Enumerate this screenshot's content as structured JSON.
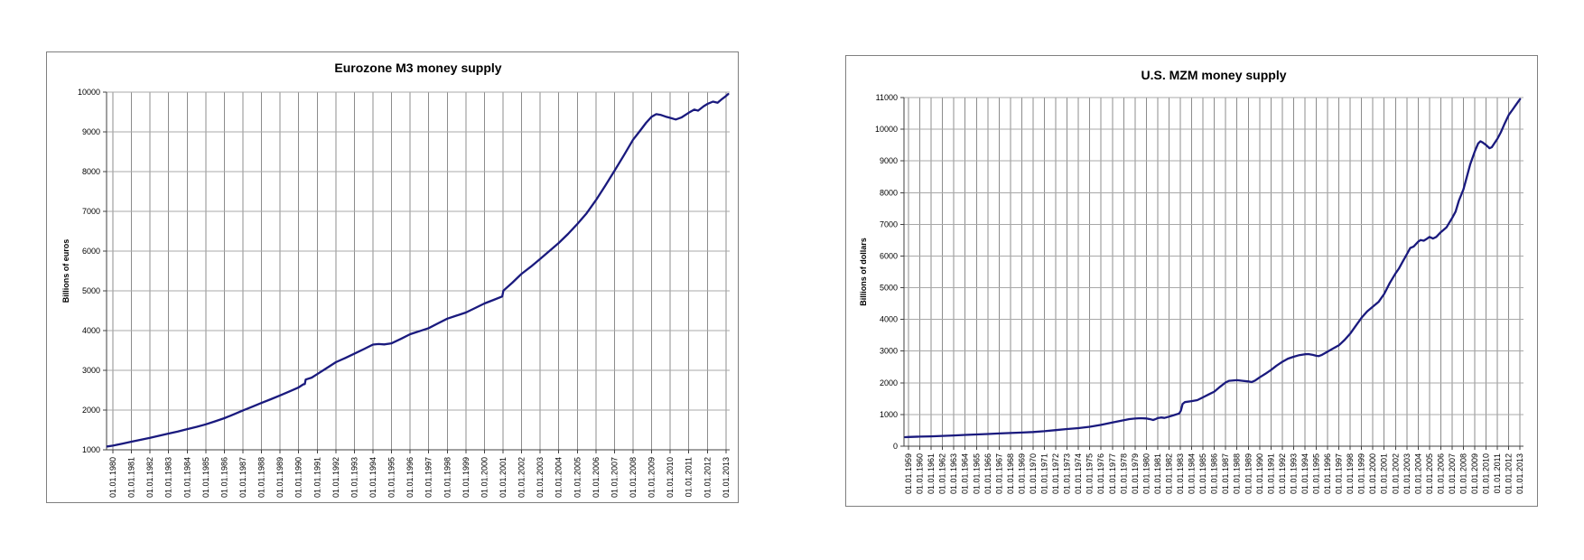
{
  "page": {
    "background_color": "#ffffff"
  },
  "chart_data": [
    {
      "type": "line",
      "title": "Eurozone M3 money supply",
      "ylabel": "Billions of euros",
      "xlabel": "",
      "legend": "none",
      "grid": "on",
      "line_color": "#1a1a7e",
      "ylim": [
        1000,
        10000
      ],
      "xlim": [
        1979.66,
        2013.2
      ],
      "y_ticks": [
        1000,
        2000,
        3000,
        4000,
        5000,
        6000,
        7000,
        8000,
        9000,
        10000
      ],
      "x_tick_year_start": 1980,
      "x_tick_labels": [
        "01.01.1980",
        "01.01.1981",
        "01.01.1982",
        "01.01.1983",
        "01.01.1984",
        "01.01.1985",
        "01.01.1986",
        "01.01.1987",
        "01.01.1988",
        "01.01.1989",
        "01.01.1990",
        "01.01.1991",
        "01.01.1992",
        "01.01.1993",
        "01.01.1994",
        "01.01.1995",
        "01.01.1996",
        "01.01.1997",
        "01.01.1998",
        "01.01.1999",
        "01.01.2000",
        "01.01.2001",
        "01.01.2002",
        "01.01.2003",
        "01.01.2004",
        "01.01.2005",
        "01.01.2006",
        "01.01.2007",
        "01.01.2008",
        "01.01.2009",
        "01.01.2010",
        "01.01.2011",
        "01.01.2012",
        "01.01.2013"
      ],
      "series": [
        {
          "name": "Eurozone M3",
          "points": [
            [
              1979.7,
              1085
            ],
            [
              1980,
              1105
            ],
            [
              1980.5,
              1155
            ],
            [
              1981,
              1205
            ],
            [
              1981.5,
              1252
            ],
            [
              1982,
              1300
            ],
            [
              1982.5,
              1355
            ],
            [
              1983,
              1410
            ],
            [
              1983.5,
              1462
            ],
            [
              1984,
              1520
            ],
            [
              1984.5,
              1578
            ],
            [
              1985,
              1642
            ],
            [
              1985.5,
              1716
            ],
            [
              1986,
              1795
            ],
            [
              1986.5,
              1892
            ],
            [
              1987,
              1990
            ],
            [
              1987.5,
              2085
            ],
            [
              1988,
              2180
            ],
            [
              1988.5,
              2272
            ],
            [
              1989,
              2368
            ],
            [
              1989.5,
              2468
            ],
            [
              1990,
              2570
            ],
            [
              1990.25,
              2648
            ],
            [
              1990.33,
              2655
            ],
            [
              1990.38,
              2768
            ],
            [
              1990.7,
              2815
            ],
            [
              1991,
              2905
            ],
            [
              1991.5,
              3055
            ],
            [
              1992,
              3205
            ],
            [
              1992.5,
              3310
            ],
            [
              1993,
              3418
            ],
            [
              1993.5,
              3532
            ],
            [
              1994,
              3648
            ],
            [
              1994.3,
              3662
            ],
            [
              1994.6,
              3652
            ],
            [
              1995,
              3680
            ],
            [
              1995.5,
              3792
            ],
            [
              1996,
              3908
            ],
            [
              1996.5,
              3985
            ],
            [
              1997,
              4062
            ],
            [
              1997.5,
              4182
            ],
            [
              1998,
              4300
            ],
            [
              1998.5,
              4378
            ],
            [
              1999,
              4455
            ],
            [
              1999.5,
              4568
            ],
            [
              2000,
              4682
            ],
            [
              2000.5,
              4772
            ],
            [
              2000.96,
              4858
            ],
            [
              2001.02,
              5005
            ],
            [
              2001.5,
              5205
            ],
            [
              2002,
              5430
            ],
            [
              2002.5,
              5608
            ],
            [
              2003,
              5805
            ],
            [
              2003.5,
              6002
            ],
            [
              2004,
              6205
            ],
            [
              2004.5,
              6432
            ],
            [
              2005,
              6682
            ],
            [
              2005.5,
              6952
            ],
            [
              2006,
              7282
            ],
            [
              2006.5,
              7645
            ],
            [
              2007,
              8022
            ],
            [
              2007.5,
              8405
            ],
            [
              2008,
              8802
            ],
            [
              2008.35,
              9012
            ],
            [
              2008.7,
              9228
            ],
            [
              2009,
              9382
            ],
            [
              2009.25,
              9445
            ],
            [
              2009.5,
              9425
            ],
            [
              2009.75,
              9385
            ],
            [
              2010,
              9352
            ],
            [
              2010.3,
              9312
            ],
            [
              2010.6,
              9362
            ],
            [
              2011,
              9482
            ],
            [
              2011.3,
              9562
            ],
            [
              2011.5,
              9535
            ],
            [
              2011.8,
              9645
            ],
            [
              2012,
              9702
            ],
            [
              2012.3,
              9762
            ],
            [
              2012.55,
              9735
            ],
            [
              2012.8,
              9832
            ],
            [
              2013,
              9902
            ],
            [
              2013.12,
              9952
            ]
          ]
        }
      ]
    },
    {
      "type": "line",
      "title": "U.S. MZM money supply",
      "ylabel": "Billions of dollars",
      "xlabel": "",
      "legend": "none",
      "grid": "on",
      "line_color": "#1a1a7e",
      "ylim": [
        0,
        11000
      ],
      "xlim": [
        1958.6,
        2013.3
      ],
      "y_ticks": [
        0,
        1000,
        2000,
        3000,
        4000,
        5000,
        6000,
        7000,
        8000,
        9000,
        10000,
        11000
      ],
      "x_tick_year_start": 1959,
      "x_tick_labels": [
        "01.01.1959",
        "01.01.1960",
        "01.01.1961",
        "01.01.1962",
        "01.01.1963",
        "01.01.1964",
        "01.01.1965",
        "01.01.1966",
        "01.01.1967",
        "01.01.1968",
        "01.01.1969",
        "01.01.1970",
        "01.01.1971",
        "01.01.1972",
        "01.01.1973",
        "01.01.1974",
        "01.01.1975",
        "01.01.1976",
        "01.01.1977",
        "01.01.1978",
        "01.01.1979",
        "01.01.1980",
        "01.01.1981",
        "01.01.1982",
        "01.01.1983",
        "01.01.1984",
        "01.01.1985",
        "01.01.1986",
        "01.01.1987",
        "01.01.1988",
        "01.01.1989",
        "01.01.1990",
        "01.01.1991",
        "01.01.1992",
        "01.01.1993",
        "01.01.1994",
        "01.01.1995",
        "01.01.1996",
        "01.01.1997",
        "01.01.1998",
        "01.01.1999",
        "01.01.2000",
        "01.01.2001",
        "01.01.2002",
        "01.01.2003",
        "01.01.2004",
        "01.01.2005",
        "01.01.2006",
        "01.01.2007",
        "01.01.2008",
        "01.01.2009",
        "01.01.2010",
        "01.01.2011",
        "01.01.2012",
        "01.01.2013"
      ],
      "series": [
        {
          "name": "U.S. MZM",
          "points": [
            [
              1958.7,
              285
            ],
            [
              1959,
              292
            ],
            [
              1960,
              302
            ],
            [
              1961,
              312
            ],
            [
              1962,
              326
            ],
            [
              1963,
              340
            ],
            [
              1964,
              355
            ],
            [
              1965,
              371
            ],
            [
              1966,
              386
            ],
            [
              1967,
              401
            ],
            [
              1968,
              416
            ],
            [
              1969,
              431
            ],
            [
              1970,
              447
            ],
            [
              1971,
              472
            ],
            [
              1972,
              506
            ],
            [
              1973,
              541
            ],
            [
              1974,
              571
            ],
            [
              1975,
              612
            ],
            [
              1976,
              672
            ],
            [
              1977,
              746
            ],
            [
              1978,
              822
            ],
            [
              1978.5,
              856
            ],
            [
              1979,
              871
            ],
            [
              1979.5,
              882
            ],
            [
              1980,
              876
            ],
            [
              1980.4,
              846
            ],
            [
              1980.6,
              826
            ],
            [
              1980.8,
              852
            ],
            [
              1981,
              886
            ],
            [
              1981.3,
              906
            ],
            [
              1981.6,
              892
            ],
            [
              1982,
              931
            ],
            [
              1982.5,
              986
            ],
            [
              1982.9,
              1032
            ],
            [
              1983.05,
              1120
            ],
            [
              1983.2,
              1332
            ],
            [
              1983.4,
              1392
            ],
            [
              1984,
              1422
            ],
            [
              1984.5,
              1452
            ],
            [
              1985,
              1542
            ],
            [
              1985.5,
              1632
            ],
            [
              1986,
              1722
            ],
            [
              1986.5,
              1872
            ],
            [
              1987,
              2012
            ],
            [
              1987.3,
              2062
            ],
            [
              1988,
              2082
            ],
            [
              1988.5,
              2062
            ],
            [
              1989,
              2042
            ],
            [
              1989.3,
              2022
            ],
            [
              1989.6,
              2072
            ],
            [
              1990,
              2172
            ],
            [
              1990.5,
              2282
            ],
            [
              1991,
              2402
            ],
            [
              1991.5,
              2542
            ],
            [
              1992,
              2662
            ],
            [
              1992.5,
              2762
            ],
            [
              1993,
              2822
            ],
            [
              1993.5,
              2872
            ],
            [
              1994,
              2902
            ],
            [
              1994.3,
              2906
            ],
            [
              1994.7,
              2882
            ],
            [
              1995,
              2852
            ],
            [
              1995.2,
              2842
            ],
            [
              1995.5,
              2882
            ],
            [
              1996,
              2982
            ],
            [
              1996.5,
              3082
            ],
            [
              1997,
              3182
            ],
            [
              1997.5,
              3352
            ],
            [
              1998,
              3552
            ],
            [
              1998.5,
              3802
            ],
            [
              1999,
              4052
            ],
            [
              1999.5,
              4252
            ],
            [
              2000,
              4402
            ],
            [
              2000.5,
              4552
            ],
            [
              2001,
              4802
            ],
            [
              2001.5,
              5152
            ],
            [
              2002,
              5452
            ],
            [
              2002.3,
              5602
            ],
            [
              2002.6,
              5802
            ],
            [
              2003,
              6052
            ],
            [
              2003.3,
              6252
            ],
            [
              2003.6,
              6302
            ],
            [
              2004,
              6452
            ],
            [
              2004.2,
              6502
            ],
            [
              2004.5,
              6482
            ],
            [
              2004.8,
              6552
            ],
            [
              2005,
              6602
            ],
            [
              2005.3,
              6552
            ],
            [
              2005.6,
              6602
            ],
            [
              2006,
              6752
            ],
            [
              2006.5,
              6902
            ],
            [
              2007,
              7202
            ],
            [
              2007.3,
              7402
            ],
            [
              2007.6,
              7752
            ],
            [
              2008,
              8102
            ],
            [
              2008.3,
              8502
            ],
            [
              2008.6,
              8902
            ],
            [
              2009,
              9302
            ],
            [
              2009.3,
              9552
            ],
            [
              2009.5,
              9622
            ],
            [
              2009.7,
              9582
            ],
            [
              2010,
              9502
            ],
            [
              2010.3,
              9402
            ],
            [
              2010.5,
              9432
            ],
            [
              2011,
              9702
            ],
            [
              2011.3,
              9902
            ],
            [
              2011.6,
              10152
            ],
            [
              2012,
              10452
            ],
            [
              2012.3,
              10602
            ],
            [
              2012.6,
              10752
            ],
            [
              2013,
              10952
            ]
          ]
        }
      ]
    }
  ]
}
